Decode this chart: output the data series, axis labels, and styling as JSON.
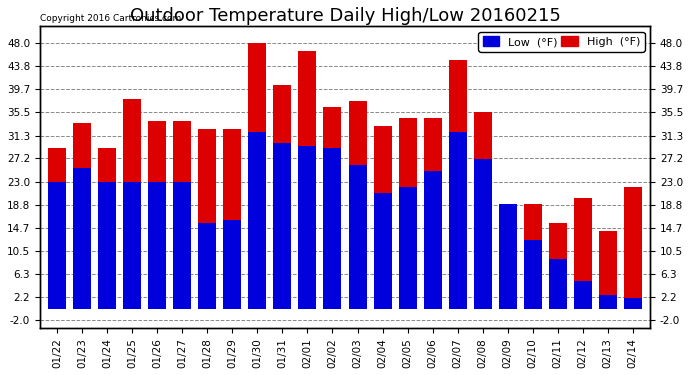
{
  "title": "Outdoor Temperature Daily High/Low 20160215",
  "copyright": "Copyright 2016 Cartronics.com",
  "legend_low": "Low  (°F)",
  "legend_high": "High  (°F)",
  "dates": [
    "01/22",
    "01/23",
    "01/24",
    "01/25",
    "01/26",
    "01/27",
    "01/28",
    "01/29",
    "01/30",
    "01/31",
    "02/01",
    "02/02",
    "02/03",
    "02/04",
    "02/05",
    "02/06",
    "02/07",
    "02/08",
    "02/09",
    "02/10",
    "02/11",
    "02/12",
    "02/13",
    "02/14"
  ],
  "low_values": [
    23.0,
    25.5,
    23.0,
    23.0,
    23.0,
    23.0,
    15.5,
    16.0,
    32.0,
    30.0,
    29.5,
    29.0,
    26.0,
    21.0,
    22.0,
    25.0,
    32.0,
    27.0,
    19.0,
    12.5,
    9.0,
    5.0,
    2.5,
    2.0
  ],
  "high_values": [
    29.0,
    33.5,
    29.0,
    38.0,
    34.0,
    34.0,
    32.5,
    32.5,
    48.0,
    40.5,
    46.5,
    36.5,
    37.5,
    33.0,
    34.5,
    34.5,
    45.0,
    35.5,
    19.0,
    19.0,
    15.5,
    20.0,
    14.0,
    22.0
  ],
  "low_color": "#0000dd",
  "high_color": "#dd0000",
  "bg_color": "#ffffff",
  "plot_bg_color": "#ffffff",
  "grid_color": "#888888",
  "yticks": [
    -2.0,
    2.2,
    6.3,
    10.5,
    14.7,
    18.8,
    23.0,
    27.2,
    31.3,
    35.5,
    39.7,
    43.8,
    48.0
  ],
  "ylim": [
    -3.5,
    51.0
  ],
  "bar_width": 0.72,
  "title_fontsize": 13,
  "tick_fontsize": 7.5,
  "legend_fontsize": 8
}
